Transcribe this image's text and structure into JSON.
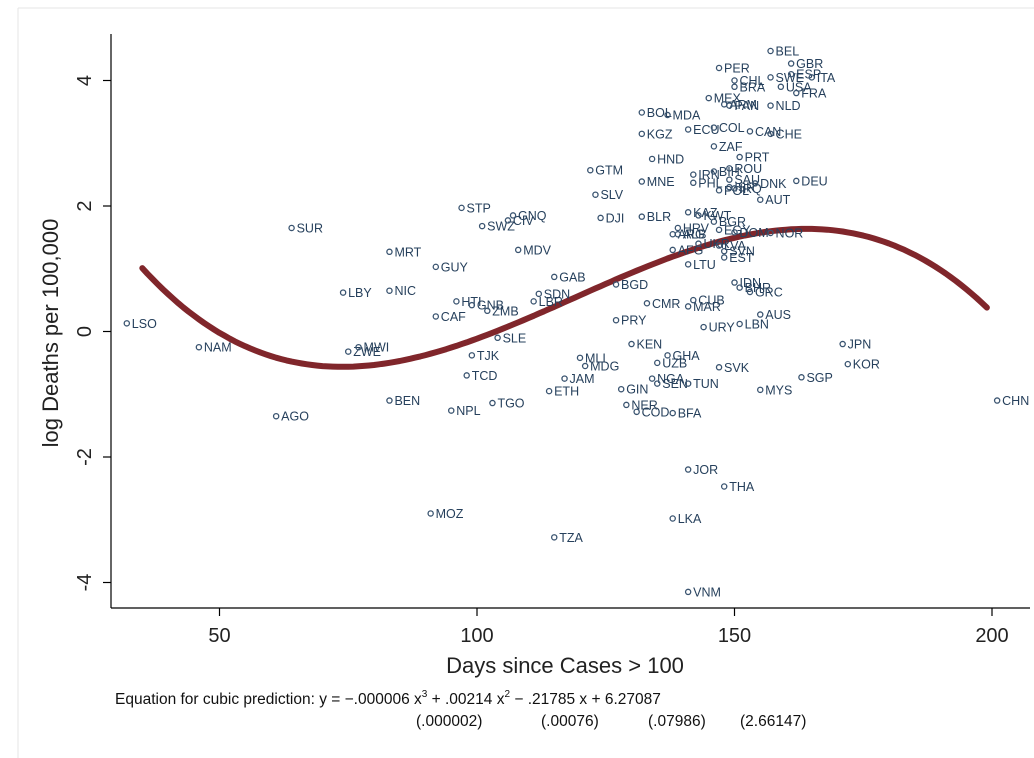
{
  "chart_data": {
    "type": "scatter",
    "title": "",
    "xlabel": "Days since Cases > 100",
    "ylabel": "log Deaths per 100,000",
    "xlim": [
      30,
      204
    ],
    "ylim": [
      -4.5,
      4.75
    ],
    "xticks": [
      50,
      100,
      150,
      200
    ],
    "yticks": [
      -4,
      -2,
      0,
      2,
      4
    ],
    "grid": false,
    "legend": "none",
    "colors": {
      "marker": "#3a5470",
      "label": "#26405c",
      "fit_line": "#80262b"
    },
    "fit": {
      "type": "cubic",
      "coefficients": {
        "a3": -6e-06,
        "a2": 0.00214,
        "a1": -0.21785,
        "a0": 6.27087
      },
      "x_range": [
        35,
        199
      ]
    },
    "equation": {
      "prefix": "Equation for cubic prediction: y = ",
      "terms": [
        {
          "text": "−.000006 x",
          "sup": "3"
        },
        {
          "text": " + .00214 x",
          "sup": "2"
        },
        {
          "text": " − .21785 x + 6.27087",
          "sup": ""
        }
      ],
      "std_errors": [
        "(.000002)",
        "(.00076)",
        "(.07986)",
        "(2.66147)"
      ]
    },
    "points": [
      {
        "label": "LSO",
        "x": 32,
        "y": 0.13
      },
      {
        "label": "NAM",
        "x": 46,
        "y": -0.25
      },
      {
        "label": "AGO",
        "x": 61,
        "y": -1.35
      },
      {
        "label": "SUR",
        "x": 64,
        "y": 1.65
      },
      {
        "label": "LBY",
        "x": 74,
        "y": 0.62
      },
      {
        "label": "ZWE",
        "x": 75,
        "y": -0.32
      },
      {
        "label": "MWI",
        "x": 77,
        "y": -0.25
      },
      {
        "label": "MRT",
        "x": 83,
        "y": 1.27
      },
      {
        "label": "NIC",
        "x": 83,
        "y": 0.65
      },
      {
        "label": "BEN",
        "x": 83,
        "y": -1.1
      },
      {
        "label": "MOZ",
        "x": 91,
        "y": -2.9
      },
      {
        "label": "GUY",
        "x": 92,
        "y": 1.03
      },
      {
        "label": "CAF",
        "x": 92,
        "y": 0.24
      },
      {
        "label": "NPL",
        "x": 95,
        "y": -1.26
      },
      {
        "label": "HTI",
        "x": 96,
        "y": 0.48
      },
      {
        "label": "STP",
        "x": 97,
        "y": 1.97
      },
      {
        "label": "TCD",
        "x": 98,
        "y": -0.7
      },
      {
        "label": "GNB",
        "x": 99,
        "y": 0.42
      },
      {
        "label": "TJK",
        "x": 99,
        "y": -0.38
      },
      {
        "label": "SWZ",
        "x": 101,
        "y": 1.68
      },
      {
        "label": "ZMB",
        "x": 102,
        "y": 0.33
      },
      {
        "label": "TGO",
        "x": 103,
        "y": -1.14
      },
      {
        "label": "SLE",
        "x": 104,
        "y": -0.1
      },
      {
        "label": "CIV",
        "x": 106,
        "y": 1.77
      },
      {
        "label": "GNQ",
        "x": 107,
        "y": 1.85
      },
      {
        "label": "MDV",
        "x": 108,
        "y": 1.3
      },
      {
        "label": "LBR",
        "x": 111,
        "y": 0.48
      },
      {
        "label": "SDN",
        "x": 112,
        "y": 0.6
      },
      {
        "label": "ETH",
        "x": 114,
        "y": -0.95
      },
      {
        "label": "GAB",
        "x": 115,
        "y": 0.87
      },
      {
        "label": "TZA",
        "x": 115,
        "y": -3.28
      },
      {
        "label": "JAM",
        "x": 117,
        "y": -0.75
      },
      {
        "label": "MLI",
        "x": 120,
        "y": -0.42
      },
      {
        "label": "MDG",
        "x": 121,
        "y": -0.55
      },
      {
        "label": "GTM",
        "x": 122,
        "y": 2.57
      },
      {
        "label": "SLV",
        "x": 123,
        "y": 2.18
      },
      {
        "label": "DJI",
        "x": 124,
        "y": 1.81
      },
      {
        "label": "BGD",
        "x": 127,
        "y": 0.75
      },
      {
        "label": "PRY",
        "x": 127,
        "y": 0.18
      },
      {
        "label": "GIN",
        "x": 128,
        "y": -0.92
      },
      {
        "label": "NER",
        "x": 129,
        "y": -1.17
      },
      {
        "label": "KEN",
        "x": 130,
        "y": -0.2
      },
      {
        "label": "COD",
        "x": 131,
        "y": -1.28
      },
      {
        "label": "BOL",
        "x": 132,
        "y": 3.49
      },
      {
        "label": "KGZ",
        "x": 132,
        "y": 3.15
      },
      {
        "label": "MNE",
        "x": 132,
        "y": 2.39
      },
      {
        "label": "BLR",
        "x": 132,
        "y": 1.83
      },
      {
        "label": "CMR",
        "x": 133,
        "y": 0.45
      },
      {
        "label": "NGA",
        "x": 134,
        "y": -0.75
      },
      {
        "label": "HND",
        "x": 134,
        "y": 2.75
      },
      {
        "label": "UZB",
        "x": 135,
        "y": -0.5
      },
      {
        "label": "SEN",
        "x": 135,
        "y": -0.83
      },
      {
        "label": "GHA",
        "x": 137,
        "y": -0.38
      },
      {
        "label": "MDA",
        "x": 137,
        "y": 3.45
      },
      {
        "label": "ARG",
        "x": 138,
        "y": 1.55
      },
      {
        "label": "AFG",
        "x": 138,
        "y": 1.3
      },
      {
        "label": "ALB",
        "x": 139,
        "y": 1.55
      },
      {
        "label": "HRV",
        "x": 139,
        "y": 1.65
      },
      {
        "label": "BFA",
        "x": 138,
        "y": -1.3
      },
      {
        "label": "LKA",
        "x": 138,
        "y": -2.98
      },
      {
        "label": "JOR",
        "x": 141,
        "y": -2.2
      },
      {
        "label": "VNM",
        "x": 141,
        "y": -4.15
      },
      {
        "label": "KAZ",
        "x": 141,
        "y": 1.9
      },
      {
        "label": "TUN",
        "x": 141,
        "y": -0.83
      },
      {
        "label": "MAR",
        "x": 141,
        "y": 0.4
      },
      {
        "label": "ECU",
        "x": 141,
        "y": 3.22
      },
      {
        "label": "PHL",
        "x": 142,
        "y": 2.37
      },
      {
        "label": "IRN",
        "x": 142,
        "y": 2.5
      },
      {
        "label": "KWT",
        "x": 143,
        "y": 1.85
      },
      {
        "label": "UKR",
        "x": 143,
        "y": 1.4
      },
      {
        "label": "LTU",
        "x": 141,
        "y": 1.07
      },
      {
        "label": "CUB",
        "x": 142,
        "y": 0.5
      },
      {
        "label": "URY",
        "x": 144,
        "y": 0.07
      },
      {
        "label": "MEX",
        "x": 145,
        "y": 3.72
      },
      {
        "label": "COL",
        "x": 146,
        "y": 3.25
      },
      {
        "label": "ZAF",
        "x": 146,
        "y": 2.95
      },
      {
        "label": "PER",
        "x": 147,
        "y": 4.2
      },
      {
        "label": "BIH",
        "x": 146,
        "y": 2.55
      },
      {
        "label": "POL",
        "x": 147,
        "y": 2.25
      },
      {
        "label": "EGY",
        "x": 147,
        "y": 1.62
      },
      {
        "label": "BGR",
        "x": 146,
        "y": 1.75
      },
      {
        "label": "LVA",
        "x": 147,
        "y": 1.37
      },
      {
        "label": "SVN",
        "x": 148,
        "y": 1.28
      },
      {
        "label": "EST",
        "x": 148,
        "y": 1.18
      },
      {
        "label": "SVK",
        "x": 147,
        "y": -0.57
      },
      {
        "label": "THA",
        "x": 148,
        "y": -2.47
      },
      {
        "label": "ARM",
        "x": 148,
        "y": 3.62
      },
      {
        "label": "PAN",
        "x": 149,
        "y": 3.6
      },
      {
        "label": "SAU",
        "x": 149,
        "y": 2.42
      },
      {
        "label": "ISR",
        "x": 149,
        "y": 2.3
      },
      {
        "label": "ROU",
        "x": 149,
        "y": 2.6
      },
      {
        "label": "BRA",
        "x": 150,
        "y": 3.9
      },
      {
        "label": "CHL",
        "x": 150,
        "y": 4.0
      },
      {
        "label": "PRT",
        "x": 151,
        "y": 2.78
      },
      {
        "label": "IRQ",
        "x": 150,
        "y": 2.28
      },
      {
        "label": "IDN",
        "x": 150,
        "y": 0.78
      },
      {
        "label": "BHR",
        "x": 151,
        "y": 0.7
      },
      {
        "label": "DOM",
        "x": 150,
        "y": 1.58
      },
      {
        "label": "GRC",
        "x": 153,
        "y": 0.63
      },
      {
        "label": "LBN",
        "x": 151,
        "y": 0.12
      },
      {
        "label": "AUS",
        "x": 155,
        "y": 0.27
      },
      {
        "label": "MYS",
        "x": 155,
        "y": -0.93
      },
      {
        "label": "DNK",
        "x": 154,
        "y": 2.36
      },
      {
        "label": "AUT",
        "x": 155,
        "y": 2.1
      },
      {
        "label": "CAN",
        "x": 153,
        "y": 3.19
      },
      {
        "label": "CHE",
        "x": 157,
        "y": 3.15
      },
      {
        "label": "NLD",
        "x": 157,
        "y": 3.6
      },
      {
        "label": "NOR",
        "x": 157,
        "y": 1.57
      },
      {
        "label": "SWE",
        "x": 157,
        "y": 4.05
      },
      {
        "label": "BEL",
        "x": 157,
        "y": 4.47
      },
      {
        "label": "USA",
        "x": 159,
        "y": 3.9
      },
      {
        "label": "GBR",
        "x": 161,
        "y": 4.27
      },
      {
        "label": "ESP",
        "x": 161,
        "y": 4.1
      },
      {
        "label": "FRA",
        "x": 162,
        "y": 3.8
      },
      {
        "label": "ITA",
        "x": 165,
        "y": 4.05
      },
      {
        "label": "DEU",
        "x": 162,
        "y": 2.4
      },
      {
        "label": "SGP",
        "x": 163,
        "y": -0.73
      },
      {
        "label": "JPN",
        "x": 171,
        "y": -0.2
      },
      {
        "label": "KOR",
        "x": 172,
        "y": -0.52
      },
      {
        "label": "CHN",
        "x": 201,
        "y": -1.1
      }
    ]
  }
}
